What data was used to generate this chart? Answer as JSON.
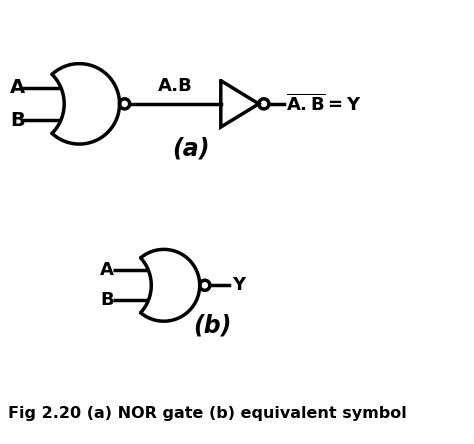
{
  "bg_color": "#ffffff",
  "line_color": "#000000",
  "line_width": 2.5,
  "fig_width": 4.74,
  "fig_height": 4.44,
  "caption": "Fig 2.20 (a) NOR gate (b) equivalent symbol",
  "label_a": "A",
  "label_b": "B",
  "label_ab": "A.B",
  "label_out": "Y",
  "label_a_caption": "(a)",
  "label_b_caption": "(b)"
}
